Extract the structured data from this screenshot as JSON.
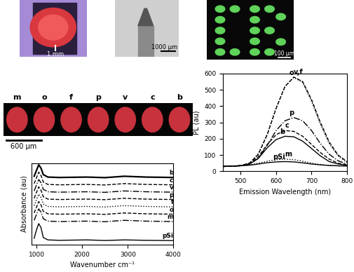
{
  "panels": {
    "photo": {
      "scale_label": "1 mm"
    },
    "needle": {
      "scale_label": "1000 µm"
    },
    "pattern": {
      "scale_label": "100 µm"
    },
    "samples": {
      "labels": [
        "m",
        "o",
        "f",
        "p",
        "v",
        "c",
        "b"
      ],
      "scale_label": "600 µm"
    }
  },
  "chart_data": [
    {
      "type": "line",
      "x_label": "Wavenumber cm⁻¹",
      "y_label": "Absorbance (au)",
      "x": [
        950,
        1000,
        1050,
        1100,
        1150,
        1250,
        1500,
        2100,
        2500,
        2920,
        3400,
        4000
      ],
      "xlim": [
        900,
        4000
      ],
      "xticks": [
        1000,
        2000,
        3000,
        4000
      ],
      "ylim": [
        0,
        10
      ],
      "tick_labels": "x",
      "series": [
        {
          "name": "b",
          "color": "#000000",
          "line_style": "solid",
          "values": [
            8.4,
            9.1,
            9.8,
            9.4,
            8.6,
            8.3,
            8.25,
            8.3,
            8.23,
            8.4,
            8.3,
            8.25
          ]
        },
        {
          "name": "c",
          "color": "#000000",
          "line_style": "dashed",
          "values": [
            7.5,
            8.2,
            8.9,
            8.5,
            7.7,
            7.4,
            7.35,
            7.4,
            7.33,
            7.5,
            7.4,
            7.35
          ]
        },
        {
          "name": "v",
          "color": "#000000",
          "line_style": "dashdot",
          "values": [
            6.6,
            7.3,
            8.0,
            7.6,
            6.8,
            6.5,
            6.45,
            6.5,
            6.43,
            6.6,
            6.5,
            6.45
          ]
        },
        {
          "name": "p",
          "color": "#000000",
          "line_style": "dashed",
          "values": [
            5.7,
            6.4,
            7.1,
            6.7,
            5.9,
            5.6,
            5.55,
            5.6,
            5.53,
            5.7,
            5.6,
            5.55
          ]
        },
        {
          "name": "f",
          "color": "#000000",
          "line_style": "dotted",
          "values": [
            4.8,
            5.5,
            6.2,
            5.8,
            5.0,
            4.7,
            4.65,
            4.7,
            4.63,
            4.8,
            4.7,
            4.65
          ]
        },
        {
          "name": "o",
          "color": "#000000",
          "line_style": "dashed",
          "values": [
            3.9,
            4.6,
            5.3,
            4.9,
            4.1,
            3.8,
            3.75,
            3.8,
            3.73,
            3.9,
            3.8,
            3.75
          ]
        },
        {
          "name": "m",
          "color": "#000000",
          "line_style": "dashdot",
          "values": [
            3.0,
            3.7,
            4.4,
            4.0,
            3.2,
            2.9,
            2.85,
            2.9,
            2.83,
            3.0,
            2.9,
            2.85
          ]
        },
        {
          "name": "pSi",
          "color": "#000000",
          "line_style": "solid",
          "values": [
            0.8,
            1.8,
            2.6,
            2.1,
            0.9,
            0.6,
            0.55,
            0.6,
            0.53,
            0.6,
            0.55,
            0.52
          ]
        }
      ]
    },
    {
      "type": "line",
      "x_label": "Emission Wavelength (nm)",
      "y_label": "PL (au)",
      "x": [
        450,
        475,
        500,
        525,
        550,
        575,
        600,
        625,
        650,
        675,
        700,
        725,
        750,
        775,
        800
      ],
      "xlim": [
        450,
        800
      ],
      "xticks": [
        500,
        600,
        700,
        800
      ],
      "ylim": [
        0,
        600
      ],
      "yticks": [
        0,
        100,
        200,
        300,
        400,
        500,
        600
      ],
      "series": [
        {
          "name": "o",
          "color": "#000000",
          "line_style": "dotted",
          "values": [
            30,
            32,
            35,
            50,
            110,
            230,
            390,
            520,
            575,
            545,
            430,
            290,
            170,
            95,
            55
          ]
        },
        {
          "name": "v,f",
          "color": "#000000",
          "line_style": "dashed",
          "values": [
            30,
            32,
            35,
            50,
            105,
            225,
            385,
            520,
            578,
            550,
            440,
            300,
            180,
            100,
            60
          ]
        },
        {
          "name": "p",
          "color": "#000000",
          "line_style": "dashdot",
          "values": [
            30,
            32,
            35,
            45,
            80,
            160,
            250,
            310,
            330,
            310,
            250,
            170,
            105,
            65,
            45
          ]
        },
        {
          "name": "c",
          "color": "#000000",
          "line_style": "dashed",
          "values": [
            30,
            32,
            35,
            50,
            90,
            165,
            225,
            250,
            245,
            215,
            165,
            115,
            75,
            50,
            40
          ]
        },
        {
          "name": "b",
          "color": "#000000",
          "line_style": "solid",
          "values": [
            30,
            32,
            35,
            45,
            80,
            145,
            195,
            215,
            212,
            185,
            140,
            95,
            60,
            45,
            38
          ]
        },
        {
          "name": "m",
          "color": "#000000",
          "line_style": "dotted",
          "values": [
            30,
            32,
            35,
            40,
            50,
            62,
            72,
            75,
            72,
            62,
            50,
            42,
            36,
            34,
            33
          ]
        },
        {
          "name": "pSi",
          "color": "#000000",
          "line_style": "solid",
          "values": [
            30,
            32,
            34,
            38,
            45,
            53,
            58,
            60,
            58,
            52,
            45,
            40,
            36,
            34,
            33
          ]
        }
      ]
    }
  ]
}
